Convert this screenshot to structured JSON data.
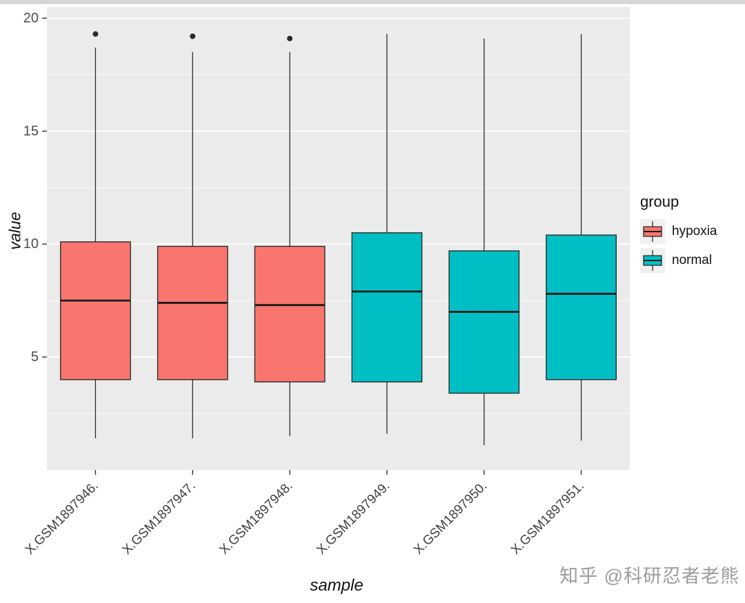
{
  "watermark": "知乎 @科研忍者老熊",
  "chart_data": {
    "type": "boxplot",
    "title": "",
    "xlabel": "sample",
    "ylabel": "value",
    "ylim": [
      0,
      20.5
    ],
    "yticks": [
      5,
      10,
      15,
      20
    ],
    "minor_yticks": [
      2.5,
      7.5,
      12.5,
      17.5
    ],
    "grid": "on",
    "panel_bg": "#EBEBEB",
    "grid_color": "#FFFFFF",
    "box_border_color": "#2B2B2B",
    "legend": {
      "title": "group",
      "position": "right",
      "entries": [
        {
          "label": "hypoxia",
          "color": "#F8766D"
        },
        {
          "label": "normal",
          "color": "#00BFC4"
        }
      ]
    },
    "categories": [
      "X.GSM1897946.",
      "X.GSM1897947.",
      "X.GSM1897948.",
      "X.GSM1897949.",
      "X.GSM1897950.",
      "X.GSM1897951."
    ],
    "boxes": [
      {
        "sample": "X.GSM1897946.",
        "group": "hypoxia",
        "whisker_low": 1.4,
        "q1": 4.0,
        "median": 7.5,
        "q3": 10.1,
        "whisker_high": 18.7,
        "outliers": [
          19.3
        ]
      },
      {
        "sample": "X.GSM1897947.",
        "group": "hypoxia",
        "whisker_low": 1.4,
        "q1": 4.0,
        "median": 7.4,
        "q3": 9.9,
        "whisker_high": 18.5,
        "outliers": [
          19.2
        ]
      },
      {
        "sample": "X.GSM1897948.",
        "group": "hypoxia",
        "whisker_low": 1.5,
        "q1": 3.9,
        "median": 7.3,
        "q3": 9.9,
        "whisker_high": 18.5,
        "outliers": [
          19.1
        ]
      },
      {
        "sample": "X.GSM1897949.",
        "group": "normal",
        "whisker_low": 1.6,
        "q1": 3.9,
        "median": 7.9,
        "q3": 10.5,
        "whisker_high": 19.3,
        "outliers": []
      },
      {
        "sample": "X.GSM1897950.",
        "group": "normal",
        "whisker_low": 1.1,
        "q1": 3.4,
        "median": 7.0,
        "q3": 9.7,
        "whisker_high": 19.1,
        "outliers": []
      },
      {
        "sample": "X.GSM1897951.",
        "group": "normal",
        "whisker_low": 1.3,
        "q1": 4.0,
        "median": 7.8,
        "q3": 10.4,
        "whisker_high": 19.3,
        "outliers": []
      }
    ]
  }
}
